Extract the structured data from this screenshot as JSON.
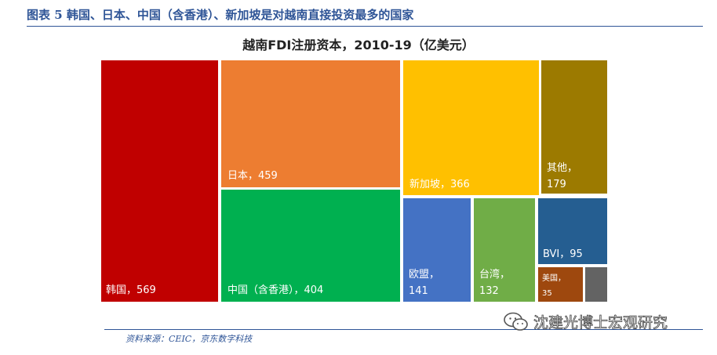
{
  "figure_title": "图表 5 韩国、日本、中国（含香港）、新加坡是对越南直接投资最多的国家",
  "source": "资料来源：CEIC，京东数字科技",
  "watermark": {
    "text": "沈建光博士宏观研究",
    "icon": "wechat-icon"
  },
  "chart_data": {
    "type": "treemap",
    "title": "越南FDI注册资本，2010-19（亿美元）",
    "items": [
      {
        "label": "韩国，569",
        "name": "韩国",
        "value": 569,
        "color": "#c00000"
      },
      {
        "label": "日本，459",
        "name": "日本",
        "value": 459,
        "color": "#ed7d31"
      },
      {
        "label": "中国（含香港），404",
        "name": "中国（含香港）",
        "value": 404,
        "color": "#00b050"
      },
      {
        "label": "新加坡，366",
        "name": "新加坡",
        "value": 366,
        "color": "#ffc000"
      },
      {
        "label": "其他，",
        "label2": "179",
        "name": "其他",
        "value": 179,
        "color": "#9c7a00"
      },
      {
        "label": "欧盟，",
        "label2": "141",
        "name": "欧盟",
        "value": 141,
        "color": "#4472c4"
      },
      {
        "label": "台湾，",
        "label2": "132",
        "name": "台湾",
        "value": 132,
        "color": "#70ad47"
      },
      {
        "label": "BVI，95",
        "name": "BVI",
        "value": 95,
        "color": "#255e91"
      },
      {
        "label": "美国，",
        "label2": "35",
        "name": "美国",
        "value": 35,
        "color": "#9e480e"
      },
      {
        "label": "",
        "name": "",
        "value": 8,
        "color": "#636363"
      }
    ]
  }
}
